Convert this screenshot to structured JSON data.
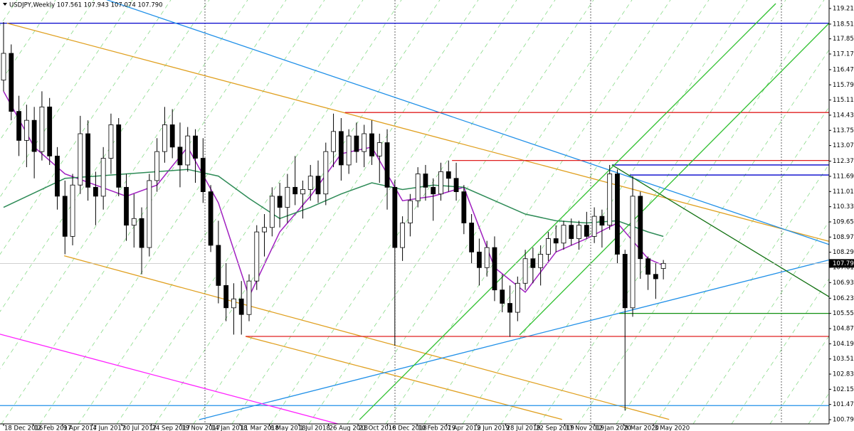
{
  "chart_data": {
    "type": "candlestick",
    "title": "USDJPY,Weekly  107.561 107.943 107.074 107.790",
    "xlim": [
      -0.93,
      215.2
    ],
    "ylim": [
      100.6,
      119.59
    ],
    "xticks": [
      {
        "value": 0,
        "label": "18 Dec 2016"
      },
      {
        "value": 7.7,
        "label": "12 Feb 2017"
      },
      {
        "value": 15.4,
        "label": "9 Apr 2017"
      },
      {
        "value": 23.1,
        "label": "4 Jun 2017"
      },
      {
        "value": 30.8,
        "label": "30 Jul 2017"
      },
      {
        "value": 38.5,
        "label": "24 Sep 2017"
      },
      {
        "value": 46.2,
        "label": "19 Nov 2017"
      },
      {
        "value": 53.9,
        "label": "14 Jan 2018"
      },
      {
        "value": 61.6,
        "label": "11 Mar 2018"
      },
      {
        "value": 69.3,
        "label": "6 May 2018"
      },
      {
        "value": 77,
        "label": "1 Jul 2018"
      },
      {
        "value": 84.7,
        "label": "26 Aug 2018"
      },
      {
        "value": 92.4,
        "label": "21 Oct 2018"
      },
      {
        "value": 100.1,
        "label": "16 Dec 2018"
      },
      {
        "value": 107.8,
        "label": "10 Feb 2019"
      },
      {
        "value": 115.5,
        "label": "7 Apr 2019"
      },
      {
        "value": 123.2,
        "label": "2 Jun 2019"
      },
      {
        "value": 130.9,
        "label": "28 Jul 2019"
      },
      {
        "value": 138.6,
        "label": "22 Sep 2019"
      },
      {
        "value": 146.3,
        "label": "17 Nov 2019"
      },
      {
        "value": 154,
        "label": "12 Jan 2020"
      },
      {
        "value": 161.7,
        "label": "8 Mar 2020"
      },
      {
        "value": 169.4,
        "label": "3 May 2020"
      }
    ],
    "yticks": [
      {
        "value": 119.21,
        "label": "119.210"
      },
      {
        "value": 118.51,
        "label": "118.510"
      },
      {
        "value": 117.85,
        "label": "117.850"
      },
      {
        "value": 117.17,
        "label": "117.170"
      },
      {
        "value": 116.47,
        "label": "116.470"
      },
      {
        "value": 115.79,
        "label": "115.790"
      },
      {
        "value": 115.11,
        "label": "115.110"
      },
      {
        "value": 114.43,
        "label": "114.430"
      },
      {
        "value": 113.75,
        "label": "113.750"
      },
      {
        "value": 113.07,
        "label": "113.070"
      },
      {
        "value": 112.37,
        "label": "112.370"
      },
      {
        "value": 111.69,
        "label": "111.690"
      },
      {
        "value": 111.01,
        "label": "111.010"
      },
      {
        "value": 110.33,
        "label": "110.330"
      },
      {
        "value": 109.65,
        "label": "109.650"
      },
      {
        "value": 108.97,
        "label": "108.970"
      },
      {
        "value": 108.29,
        "label": "108.290"
      },
      {
        "value": 107.61,
        "label": "107.610"
      },
      {
        "value": 106.93,
        "label": "106.930"
      },
      {
        "value": 106.23,
        "label": "106.230"
      },
      {
        "value": 105.55,
        "label": "105.550"
      },
      {
        "value": 104.87,
        "label": "104.870"
      },
      {
        "value": 104.19,
        "label": "104.190"
      },
      {
        "value": 103.51,
        "label": "103.510"
      },
      {
        "value": 102.83,
        "label": "102.830"
      },
      {
        "value": 102.15,
        "label": "102.150"
      },
      {
        "value": 101.47,
        "label": "101.470"
      },
      {
        "value": 100.79,
        "label": "100.790"
      }
    ],
    "last_price": {
      "value": 107.79,
      "label": "107.790"
    },
    "candles": {
      "up_color": "#ffffff",
      "down_color": "#000000",
      "x": [
        0,
        2,
        4,
        6,
        8,
        10,
        12,
        14,
        16,
        18,
        20,
        22,
        24,
        26,
        28,
        30,
        32,
        34,
        36,
        38,
        40,
        42,
        44,
        46,
        48,
        50,
        52,
        54,
        56,
        58,
        60,
        62,
        64,
        66,
        68,
        70,
        72,
        74,
        76,
        78,
        80,
        82,
        84,
        86,
        88,
        90,
        92,
        94,
        96,
        98,
        100,
        102,
        104,
        106,
        108,
        110,
        112,
        114,
        116,
        118,
        120,
        122,
        124,
        126,
        128,
        130,
        132,
        134,
        136,
        138,
        140,
        142,
        144,
        146,
        148,
        150,
        152,
        154,
        156,
        158,
        160,
        162,
        164,
        166,
        168,
        170,
        172
      ],
      "open": [
        116.0,
        117.2,
        114.6,
        113.3,
        114.2,
        112.8,
        114.8,
        112.6,
        110.8,
        109.0,
        111.3,
        113.6,
        111.2,
        110.8,
        112.5,
        114.0,
        111.2,
        109.5,
        109.8,
        108.5,
        111.5,
        112.8,
        114.0,
        113.0,
        112.2,
        113.5,
        112.5,
        111.0,
        108.6,
        106.8,
        105.8,
        106.2,
        105.5,
        107.0,
        109.2,
        109.4,
        110.8,
        110.3,
        111.2,
        110.9,
        111.1,
        111.7,
        110.9,
        112.8,
        113.7,
        112.2,
        113.5,
        112.8,
        113.6,
        112.6,
        113.2,
        111.2,
        108.5,
        109.6,
        110.6,
        111.8,
        111.2,
        110.9,
        111.9,
        111.6,
        111.0,
        109.6,
        108.3,
        107.6,
        108.5,
        106.6,
        106.0,
        105.6,
        106.9,
        108.0,
        107.6,
        108.2,
        108.9,
        108.7,
        109.5,
        108.9,
        109.5,
        109.0,
        109.9,
        109.5,
        111.8,
        108.2,
        105.8,
        110.8,
        108.0,
        107.3,
        107.561
      ],
      "high": [
        118.6,
        117.6,
        115.3,
        114.9,
        114.8,
        115.5,
        115.2,
        113.0,
        111.5,
        111.8,
        114.4,
        114.2,
        111.9,
        113.0,
        114.5,
        114.3,
        111.8,
        110.9,
        110.3,
        111.8,
        113.4,
        114.8,
        114.7,
        114.1,
        113.9,
        113.8,
        113.4,
        111.3,
        109.7,
        107.8,
        106.9,
        107.0,
        107.3,
        109.5,
        110.0,
        111.2,
        111.4,
        111.8,
        112.6,
        111.5,
        112.2,
        112.4,
        113.2,
        114.5,
        114.3,
        113.8,
        114.1,
        114.0,
        114.2,
        113.6,
        113.8,
        111.5,
        109.9,
        110.9,
        112.1,
        112.2,
        111.6,
        112.3,
        112.4,
        112.3,
        111.3,
        110.0,
        108.9,
        108.8,
        109.0,
        107.3,
        106.8,
        107.2,
        108.4,
        108.5,
        108.6,
        109.2,
        109.5,
        109.7,
        109.8,
        109.7,
        110.1,
        110.3,
        110.2,
        112.2,
        112.0,
        108.4,
        111.7,
        111.0,
        108.1,
        107.8,
        107.943
      ],
      "low": [
        115.5,
        114.2,
        112.6,
        112.1,
        111.6,
        112.4,
        112.2,
        110.2,
        108.2,
        108.6,
        110.9,
        110.6,
        109.5,
        110.2,
        111.8,
        110.8,
        108.8,
        108.5,
        107.3,
        108.1,
        111.0,
        112.3,
        112.5,
        111.2,
        111.9,
        111.4,
        110.5,
        108.3,
        106.0,
        105.2,
        104.6,
        104.6,
        105.2,
        106.6,
        108.1,
        109.0,
        109.4,
        109.6,
        110.4,
        109.8,
        110.6,
        110.5,
        110.4,
        112.1,
        111.5,
        111.8,
        112.3,
        112.1,
        112.2,
        111.4,
        110.2,
        104.1,
        107.9,
        109.0,
        110.3,
        110.6,
        109.7,
        110.6,
        111.0,
        110.6,
        109.1,
        107.8,
        106.8,
        107.2,
        106.1,
        105.6,
        104.5,
        105.2,
        106.6,
        106.9,
        106.8,
        107.9,
        108.3,
        108.4,
        108.6,
        108.4,
        108.9,
        108.7,
        108.5,
        109.3,
        107.8,
        101.2,
        105.4,
        107.1,
        106.6,
        106.2,
        107.074
      ],
      "close": [
        117.2,
        114.6,
        113.3,
        114.2,
        112.8,
        114.8,
        112.6,
        110.8,
        109.0,
        111.3,
        113.6,
        111.2,
        110.8,
        112.5,
        114.0,
        111.2,
        109.5,
        109.8,
        108.5,
        111.5,
        112.8,
        114.0,
        113.0,
        112.2,
        113.5,
        112.5,
        111.0,
        108.6,
        106.8,
        105.8,
        106.2,
        105.5,
        107.0,
        109.2,
        109.4,
        110.8,
        110.3,
        111.2,
        110.9,
        111.1,
        111.7,
        110.9,
        112.8,
        113.7,
        112.2,
        113.5,
        112.8,
        113.6,
        112.6,
        113.2,
        111.2,
        108.5,
        109.6,
        110.6,
        111.8,
        111.2,
        110.9,
        111.9,
        111.6,
        111.0,
        109.6,
        108.3,
        107.6,
        108.5,
        106.6,
        106.0,
        105.6,
        106.9,
        108.0,
        107.6,
        108.2,
        108.9,
        108.7,
        109.5,
        108.9,
        109.5,
        109.0,
        109.9,
        109.5,
        111.8,
        108.2,
        105.8,
        110.8,
        108.0,
        107.3,
        107.1,
        107.79
      ]
    },
    "series": [
      {
        "color": "#a020c0",
        "x": [
          0,
          8,
          16,
          24,
          32,
          40,
          48,
          56,
          64,
          72,
          80,
          88,
          96,
          104,
          112,
          120,
          128,
          136,
          144,
          152,
          160,
          168,
          172
        ],
        "values": [
          115.5,
          113.0,
          111.8,
          111.3,
          110.8,
          111.3,
          113.0,
          110.5,
          106.3,
          109.2,
          110.8,
          112.7,
          113.0,
          110.6,
          110.8,
          111.2,
          107.6,
          106.5,
          108.3,
          108.9,
          109.6,
          108.0,
          107.7
        ]
      },
      {
        "color": "#2e8b57",
        "x": [
          0,
          16,
          32,
          48,
          56,
          64,
          72,
          80,
          88,
          96,
          104,
          112,
          120,
          128,
          136,
          144,
          152,
          160,
          168,
          172
        ],
        "values": [
          110.3,
          111.6,
          111.8,
          112.0,
          111.7,
          110.7,
          109.8,
          110.3,
          110.9,
          111.4,
          111.1,
          111.3,
          111.2,
          110.6,
          110.0,
          109.7,
          109.6,
          109.7,
          109.2,
          109.0
        ]
      }
    ],
    "lines": [
      {
        "color": "#0000cc",
        "x": [
          -0.93,
          215.2
        ],
        "values": [
          118.55,
          118.55
        ]
      },
      {
        "color": "#e0a020",
        "x": [
          0.9,
          215.8
        ],
        "values": [
          118.55,
          108.75
        ]
      },
      {
        "color": "#e0a020",
        "x": [
          15.8,
          173.5
        ],
        "values": [
          108.13,
          100.8
        ]
      },
      {
        "color": "#e0a020",
        "x": [
          63.1,
          145.6
        ],
        "values": [
          104.52,
          100.8
        ]
      },
      {
        "color": "#2090e8",
        "x": [
          26.9,
          215.8
        ],
        "values": [
          119.6,
          108.6
        ]
      },
      {
        "color": "#2090e8",
        "x": [
          51.0,
          215.8
        ],
        "values": [
          100.79,
          107.97
        ]
      },
      {
        "color": "#e02020",
        "x": [
          89.0,
          215.2
        ],
        "values": [
          114.55,
          114.55
        ]
      },
      {
        "color": "#e02020",
        "x": [
          116.9,
          215.2
        ],
        "values": [
          112.4,
          112.4
        ]
      },
      {
        "color": "#e02020",
        "x": [
          63.1,
          215.2
        ],
        "values": [
          104.52,
          104.52
        ]
      },
      {
        "color": "#0000cc",
        "x": [
          158.6,
          215.2
        ],
        "values": [
          112.2,
          112.2
        ]
      },
      {
        "color": "#0000cc",
        "x": [
          163.3,
          215.2
        ],
        "values": [
          111.75,
          111.75
        ]
      },
      {
        "color": "#109010",
        "x": [
          160.5,
          215.2
        ],
        "values": [
          105.55,
          105.55
        ]
      },
      {
        "color": "#2090e8",
        "x": [
          -0.93,
          215.2
        ],
        "values": [
          101.42,
          101.42
        ]
      },
      {
        "color": "#ff20ff",
        "x": [
          -0.93,
          93.7
        ],
        "values": [
          104.62,
          100.3
        ]
      },
      {
        "color": "#107010",
        "x": [
          158.6,
          216.1
        ],
        "values": [
          112.2,
          106.2
        ]
      },
      {
        "color": "#30c030",
        "x": [
          92.8,
          201.3
        ],
        "values": [
          100.79,
          119.43
        ]
      },
      {
        "color": "#30c030",
        "x": [
          134.5,
          215.2
        ],
        "values": [
          104.58,
          118.55
        ]
      }
    ]
  }
}
